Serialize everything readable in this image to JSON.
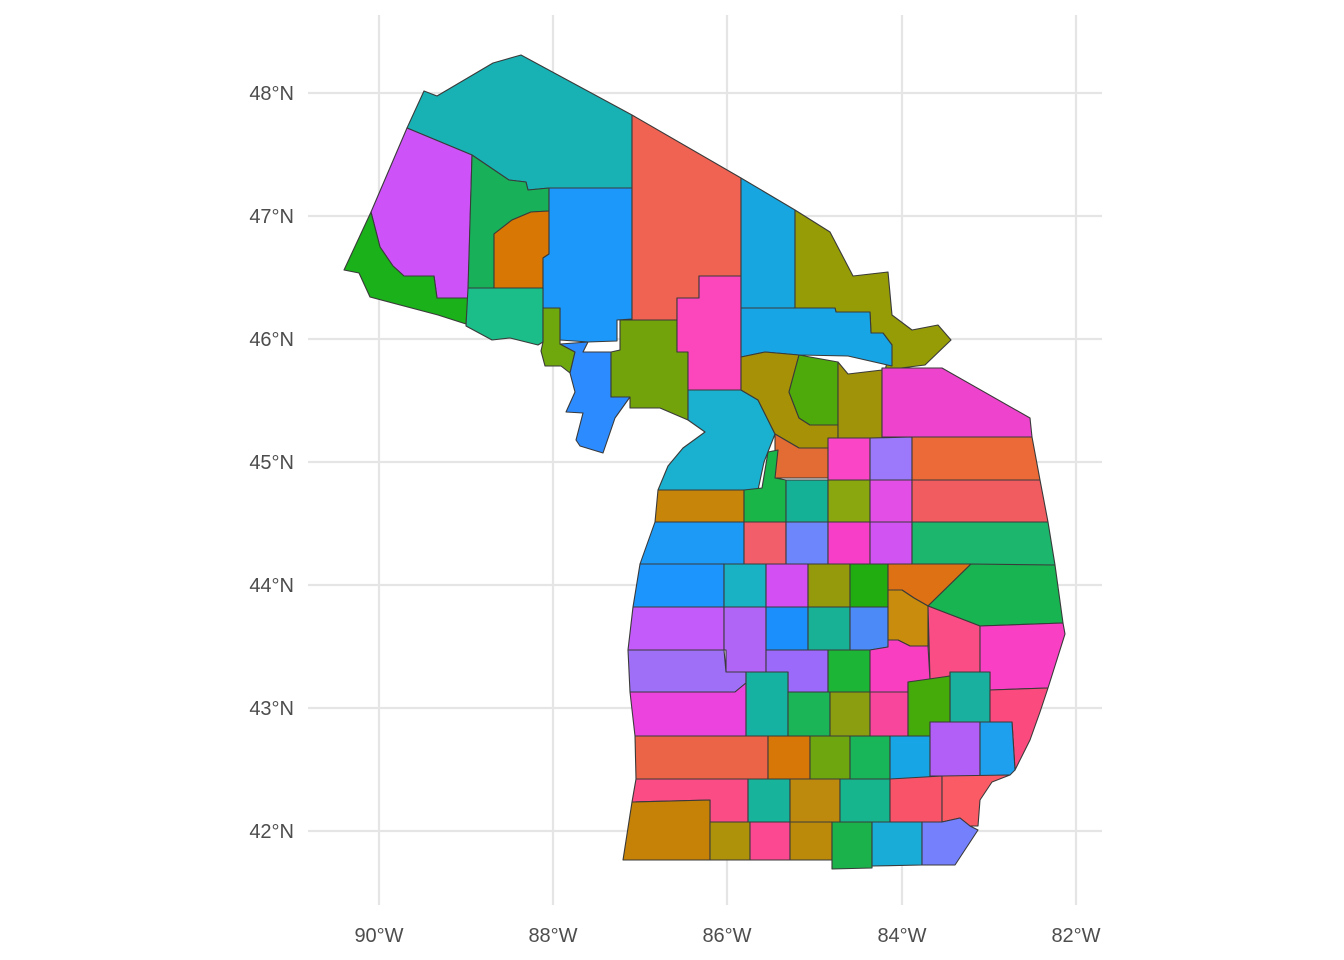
{
  "map": {
    "type": "choropleth",
    "region": "Michigan counties",
    "x_axis": {
      "range_deg": [
        -90.8,
        -81.8
      ],
      "ticks": [
        {
          "value": -90,
          "label": "90°W"
        },
        {
          "value": -88,
          "label": "88°W"
        },
        {
          "value": -86,
          "label": "86°W"
        },
        {
          "value": -84,
          "label": "84°W"
        },
        {
          "value": -82,
          "label": "82°W"
        }
      ]
    },
    "y_axis": {
      "range_deg": [
        41.5,
        48.5
      ],
      "ticks": [
        {
          "value": 42,
          "label": "42°N"
        },
        {
          "value": 43,
          "label": "43°N"
        },
        {
          "value": 44,
          "label": "44°N"
        },
        {
          "value": 45,
          "label": "45°N"
        },
        {
          "value": 46,
          "label": "46°N"
        },
        {
          "value": 47,
          "label": "47°N"
        },
        {
          "value": 48,
          "label": "48°N"
        }
      ]
    },
    "grid": true,
    "legend": "none",
    "border_color": "#3a3a3a"
  }
}
